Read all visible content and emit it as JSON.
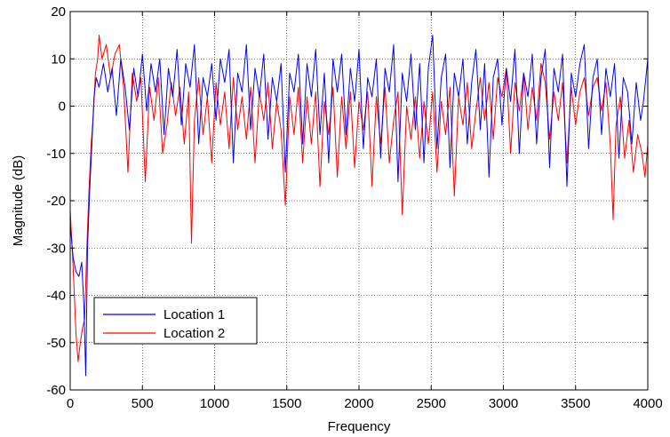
{
  "chart_data": {
    "type": "line",
    "title": "",
    "xlabel": "Frequency",
    "ylabel": "Magnitude (dB)",
    "xlim": [
      0,
      4000
    ],
    "ylim": [
      -60,
      20
    ],
    "xticks": [
      0,
      500,
      1000,
      1500,
      2000,
      2500,
      3000,
      3500,
      4000
    ],
    "yticks": [
      -60,
      -50,
      -40,
      -30,
      -20,
      -10,
      0,
      10,
      20
    ],
    "grid": "dotted",
    "legend_position": "lower-left",
    "series": [
      {
        "name": "Location 1",
        "color": "#0000ff",
        "points": [
          [
            0,
            -25
          ],
          [
            20,
            -32
          ],
          [
            40,
            -35
          ],
          [
            60,
            -36
          ],
          [
            80,
            -33
          ],
          [
            95,
            -42
          ],
          [
            108,
            -57
          ],
          [
            120,
            -30
          ],
          [
            135,
            -18
          ],
          [
            150,
            -8
          ],
          [
            165,
            2
          ],
          [
            180,
            6
          ],
          [
            200,
            4
          ],
          [
            230,
            9
          ],
          [
            260,
            3
          ],
          [
            290,
            8
          ],
          [
            320,
            -2
          ],
          [
            350,
            10
          ],
          [
            380,
            4
          ],
          [
            410,
            -5
          ],
          [
            440,
            8
          ],
          [
            470,
            2
          ],
          [
            500,
            11
          ],
          [
            530,
            -1
          ],
          [
            560,
            9
          ],
          [
            590,
            3
          ],
          [
            620,
            10
          ],
          [
            650,
            -6
          ],
          [
            680,
            8
          ],
          [
            710,
            2
          ],
          [
            740,
            12
          ],
          [
            770,
            -4
          ],
          [
            800,
            9
          ],
          [
            830,
            4
          ],
          [
            860,
            13
          ],
          [
            890,
            -8
          ],
          [
            920,
            6
          ],
          [
            950,
            2
          ],
          [
            980,
            9
          ],
          [
            1010,
            -3
          ],
          [
            1040,
            10
          ],
          [
            1070,
            5
          ],
          [
            1100,
            12
          ],
          [
            1130,
            -12
          ],
          [
            1160,
            7
          ],
          [
            1190,
            3
          ],
          [
            1220,
            13
          ],
          [
            1250,
            -5
          ],
          [
            1280,
            8
          ],
          [
            1310,
            2
          ],
          [
            1340,
            11
          ],
          [
            1370,
            -7
          ],
          [
            1400,
            6
          ],
          [
            1430,
            1
          ],
          [
            1460,
            9
          ],
          [
            1490,
            -14
          ],
          [
            1520,
            7
          ],
          [
            1550,
            3
          ],
          [
            1580,
            11
          ],
          [
            1610,
            -8
          ],
          [
            1640,
            9
          ],
          [
            1670,
            2
          ],
          [
            1700,
            12
          ],
          [
            1730,
            -6
          ],
          [
            1760,
            7
          ],
          [
            1790,
            -12
          ],
          [
            1820,
            10
          ],
          [
            1850,
            3
          ],
          [
            1880,
            11
          ],
          [
            1910,
            -6
          ],
          [
            1940,
            8
          ],
          [
            1970,
            1
          ],
          [
            2000,
            12
          ],
          [
            2030,
            -9
          ],
          [
            2060,
            6
          ],
          [
            2090,
            2
          ],
          [
            2120,
            10
          ],
          [
            2150,
            -11
          ],
          [
            2180,
            8
          ],
          [
            2210,
            3
          ],
          [
            2240,
            13
          ],
          [
            2270,
            -16
          ],
          [
            2300,
            7
          ],
          [
            2330,
            1
          ],
          [
            2360,
            11
          ],
          [
            2390,
            -5
          ],
          [
            2420,
            9
          ],
          [
            2450,
            -12
          ],
          [
            2480,
            8
          ],
          [
            2510,
            15
          ],
          [
            2540,
            -9
          ],
          [
            2570,
            6
          ],
          [
            2600,
            11
          ],
          [
            2630,
            -13
          ],
          [
            2660,
            7
          ],
          [
            2690,
            2
          ],
          [
            2720,
            10
          ],
          [
            2750,
            -8
          ],
          [
            2780,
            5
          ],
          [
            2810,
            12
          ],
          [
            2840,
            -5
          ],
          [
            2870,
            9
          ],
          [
            2900,
            -15
          ],
          [
            2930,
            6
          ],
          [
            2960,
            10
          ],
          [
            2990,
            -4
          ],
          [
            3020,
            8
          ],
          [
            3050,
            1
          ],
          [
            3080,
            12
          ],
          [
            3110,
            -10
          ],
          [
            3140,
            7
          ],
          [
            3170,
            2
          ],
          [
            3200,
            11
          ],
          [
            3230,
            -8
          ],
          [
            3260,
            6
          ],
          [
            3290,
            12
          ],
          [
            3320,
            -13
          ],
          [
            3350,
            8
          ],
          [
            3380,
            3
          ],
          [
            3410,
            11
          ],
          [
            3440,
            -17
          ],
          [
            3470,
            7
          ],
          [
            3500,
            2
          ],
          [
            3530,
            9
          ],
          [
            3560,
            13
          ],
          [
            3590,
            -9
          ],
          [
            3620,
            6
          ],
          [
            3650,
            10
          ],
          [
            3680,
            -6
          ],
          [
            3710,
            8
          ],
          [
            3740,
            2
          ],
          [
            3770,
            9
          ],
          [
            3800,
            -11
          ],
          [
            3830,
            6
          ],
          [
            3860,
            3
          ],
          [
            3890,
            -8
          ],
          [
            3920,
            5
          ],
          [
            3950,
            -3
          ],
          [
            3970,
            1
          ],
          [
            3990,
            7
          ],
          [
            4000,
            10
          ]
        ]
      },
      {
        "name": "Location 2",
        "color": "#ff0000",
        "points": [
          [
            0,
            -22
          ],
          [
            20,
            -34
          ],
          [
            40,
            -48
          ],
          [
            55,
            -54
          ],
          [
            70,
            -50
          ],
          [
            85,
            -47
          ],
          [
            100,
            -45
          ],
          [
            115,
            -30
          ],
          [
            130,
            -18
          ],
          [
            145,
            -8
          ],
          [
            160,
            -2
          ],
          [
            175,
            7
          ],
          [
            190,
            10
          ],
          [
            200,
            15
          ],
          [
            220,
            10
          ],
          [
            250,
            13
          ],
          [
            280,
            6
          ],
          [
            310,
            11
          ],
          [
            340,
            13
          ],
          [
            370,
            4
          ],
          [
            400,
            -14
          ],
          [
            430,
            7
          ],
          [
            460,
            1
          ],
          [
            490,
            6
          ],
          [
            520,
            -16
          ],
          [
            550,
            4
          ],
          [
            580,
            -3
          ],
          [
            610,
            6
          ],
          [
            640,
            -10
          ],
          [
            670,
            -4
          ],
          [
            700,
            5
          ],
          [
            730,
            -2
          ],
          [
            760,
            4
          ],
          [
            790,
            -8
          ],
          [
            820,
            3
          ],
          [
            840,
            -29
          ],
          [
            860,
            -3
          ],
          [
            890,
            6
          ],
          [
            920,
            -6
          ],
          [
            950,
            2
          ],
          [
            980,
            -12
          ],
          [
            1010,
            5
          ],
          [
            1040,
            -4
          ],
          [
            1070,
            3
          ],
          [
            1100,
            -9
          ],
          [
            1130,
            6
          ],
          [
            1160,
            -5
          ],
          [
            1190,
            2
          ],
          [
            1220,
            -7
          ],
          [
            1250,
            4
          ],
          [
            1280,
            -12
          ],
          [
            1310,
            3
          ],
          [
            1340,
            -3
          ],
          [
            1370,
            5
          ],
          [
            1400,
            -9
          ],
          [
            1430,
            1
          ],
          [
            1460,
            -5
          ],
          [
            1490,
            -21
          ],
          [
            1520,
            2
          ],
          [
            1550,
            -6
          ],
          [
            1580,
            4
          ],
          [
            1610,
            -12
          ],
          [
            1640,
            2
          ],
          [
            1670,
            -8
          ],
          [
            1700,
            3
          ],
          [
            1730,
            -17
          ],
          [
            1760,
            1
          ],
          [
            1790,
            -6
          ],
          [
            1820,
            4
          ],
          [
            1850,
            -15
          ],
          [
            1880,
            2
          ],
          [
            1910,
            -9
          ],
          [
            1940,
            3
          ],
          [
            1970,
            -13
          ],
          [
            2000,
            1
          ],
          [
            2030,
            -5
          ],
          [
            2060,
            3
          ],
          [
            2090,
            -17
          ],
          [
            2120,
            2
          ],
          [
            2150,
            -8
          ],
          [
            2180,
            4
          ],
          [
            2210,
            -12
          ],
          [
            2240,
            -3
          ],
          [
            2270,
            3
          ],
          [
            2300,
            -23
          ],
          [
            2330,
            0
          ],
          [
            2360,
            -7
          ],
          [
            2390,
            2
          ],
          [
            2420,
            -11
          ],
          [
            2450,
            1
          ],
          [
            2480,
            -8
          ],
          [
            2510,
            3
          ],
          [
            2540,
            -14
          ],
          [
            2570,
            1
          ],
          [
            2600,
            -6
          ],
          [
            2630,
            4
          ],
          [
            2660,
            -19
          ],
          [
            2690,
            2
          ],
          [
            2720,
            -4
          ],
          [
            2750,
            5
          ],
          [
            2780,
            -9
          ],
          [
            2810,
            -1
          ],
          [
            2840,
            6
          ],
          [
            2870,
            -3
          ],
          [
            2900,
            5
          ],
          [
            2930,
            -7
          ],
          [
            2960,
            6
          ],
          [
            2990,
            2
          ],
          [
            3020,
            8
          ],
          [
            3050,
            -10
          ],
          [
            3080,
            5
          ],
          [
            3110,
            -1
          ],
          [
            3140,
            7
          ],
          [
            3170,
            -5
          ],
          [
            3200,
            4
          ],
          [
            3230,
            -3
          ],
          [
            3260,
            9
          ],
          [
            3290,
            5
          ],
          [
            3320,
            -7
          ],
          [
            3350,
            3
          ],
          [
            3380,
            -3
          ],
          [
            3410,
            5
          ],
          [
            3440,
            -12
          ],
          [
            3470,
            4
          ],
          [
            3500,
            -4
          ],
          [
            3530,
            3
          ],
          [
            3560,
            6
          ],
          [
            3590,
            -2
          ],
          [
            3620,
            4
          ],
          [
            3650,
            6
          ],
          [
            3680,
            -1
          ],
          [
            3710,
            5
          ],
          [
            3740,
            -8
          ],
          [
            3760,
            -24
          ],
          [
            3780,
            -4
          ],
          [
            3810,
            2
          ],
          [
            3840,
            -11
          ],
          [
            3870,
            -3
          ],
          [
            3900,
            -14
          ],
          [
            3930,
            -6
          ],
          [
            3960,
            -10
          ],
          [
            3980,
            -15
          ],
          [
            4000,
            -8
          ]
        ]
      }
    ]
  }
}
